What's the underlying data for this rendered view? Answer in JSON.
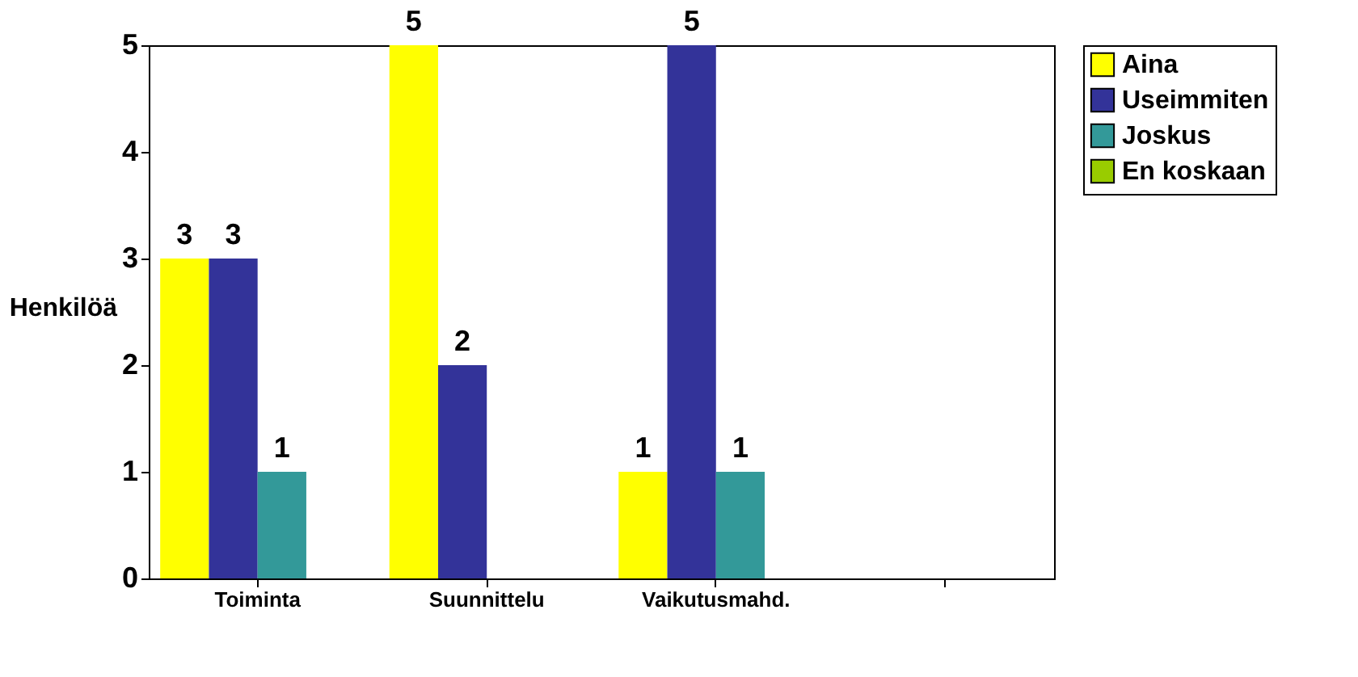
{
  "chart_data": {
    "type": "bar",
    "ylabel": "Henkilöä",
    "categories": [
      "Toiminta",
      "Suunnittelu",
      "Vaikutusmahd.",
      null
    ],
    "series": [
      {
        "name": "Aina",
        "color": "#ffff00",
        "values": [
          3,
          5,
          1,
          0
        ],
        "value_labels": [
          "3",
          "5",
          "1",
          null
        ]
      },
      {
        "name": "Useimmiten",
        "color": "#333399",
        "values": [
          3,
          2,
          5,
          0
        ],
        "value_labels": [
          "3",
          "2",
          "5",
          null
        ]
      },
      {
        "name": "Joskus",
        "color": "#339999",
        "values": [
          1,
          0,
          1,
          0
        ],
        "value_labels": [
          "1",
          null,
          "1",
          null
        ]
      },
      {
        "name": "En koskaan",
        "color": "#99cc00",
        "values": [
          0,
          0,
          0,
          0
        ],
        "value_labels": [
          null,
          null,
          null,
          null
        ]
      }
    ],
    "ylim": [
      0,
      5
    ],
    "yticks": [
      0,
      1,
      2,
      3,
      4,
      5
    ],
    "grid": false,
    "legend": "right"
  }
}
